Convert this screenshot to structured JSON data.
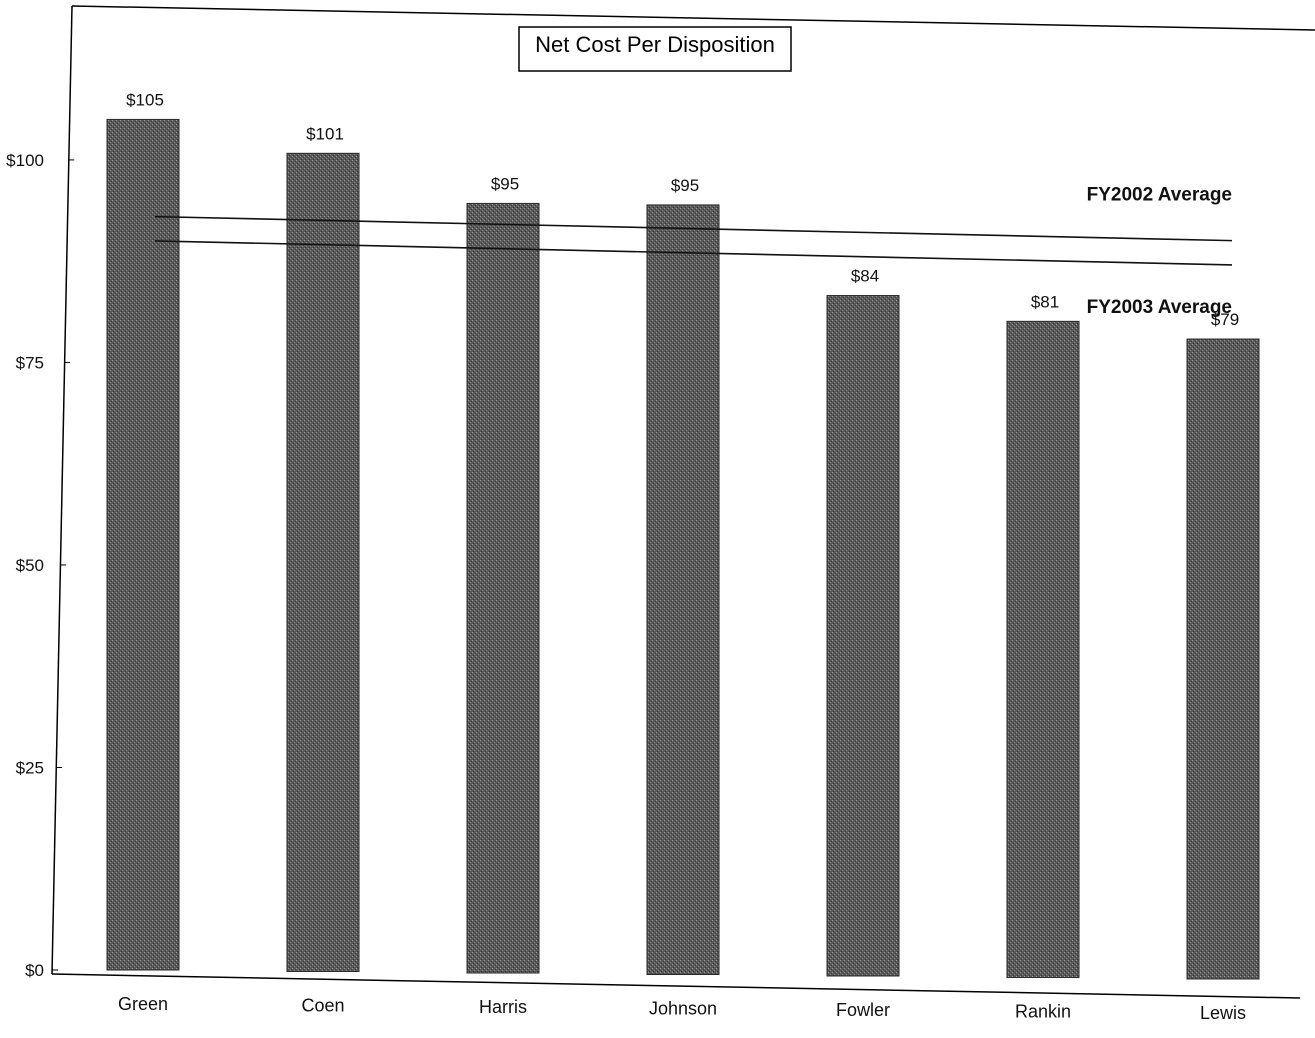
{
  "chart_data": {
    "type": "bar",
    "title": "Net Cost Per Disposition",
    "xlabel": "",
    "ylabel": "",
    "categories": [
      "Green",
      "Coen",
      "Harris",
      "Johnson",
      "Fowler",
      "Rankin",
      "Lewis"
    ],
    "values": [
      105,
      101,
      95,
      95,
      84,
      81,
      79
    ],
    "value_labels": [
      "$105",
      "$101",
      "$95",
      "$95",
      "$84",
      "$81",
      "$79"
    ],
    "ylim": [
      0,
      119
    ],
    "y_ticks": [
      0,
      25,
      50,
      75,
      100
    ],
    "y_tick_labels": [
      "$0",
      "$25",
      "$50",
      "$75",
      "$100"
    ],
    "reference_lines": [
      {
        "label": "FY2002 Average",
        "value": 93
      },
      {
        "label": "FY2003 Average",
        "value": 90
      }
    ],
    "grid": false,
    "bar_color": "#6e6e6e"
  }
}
